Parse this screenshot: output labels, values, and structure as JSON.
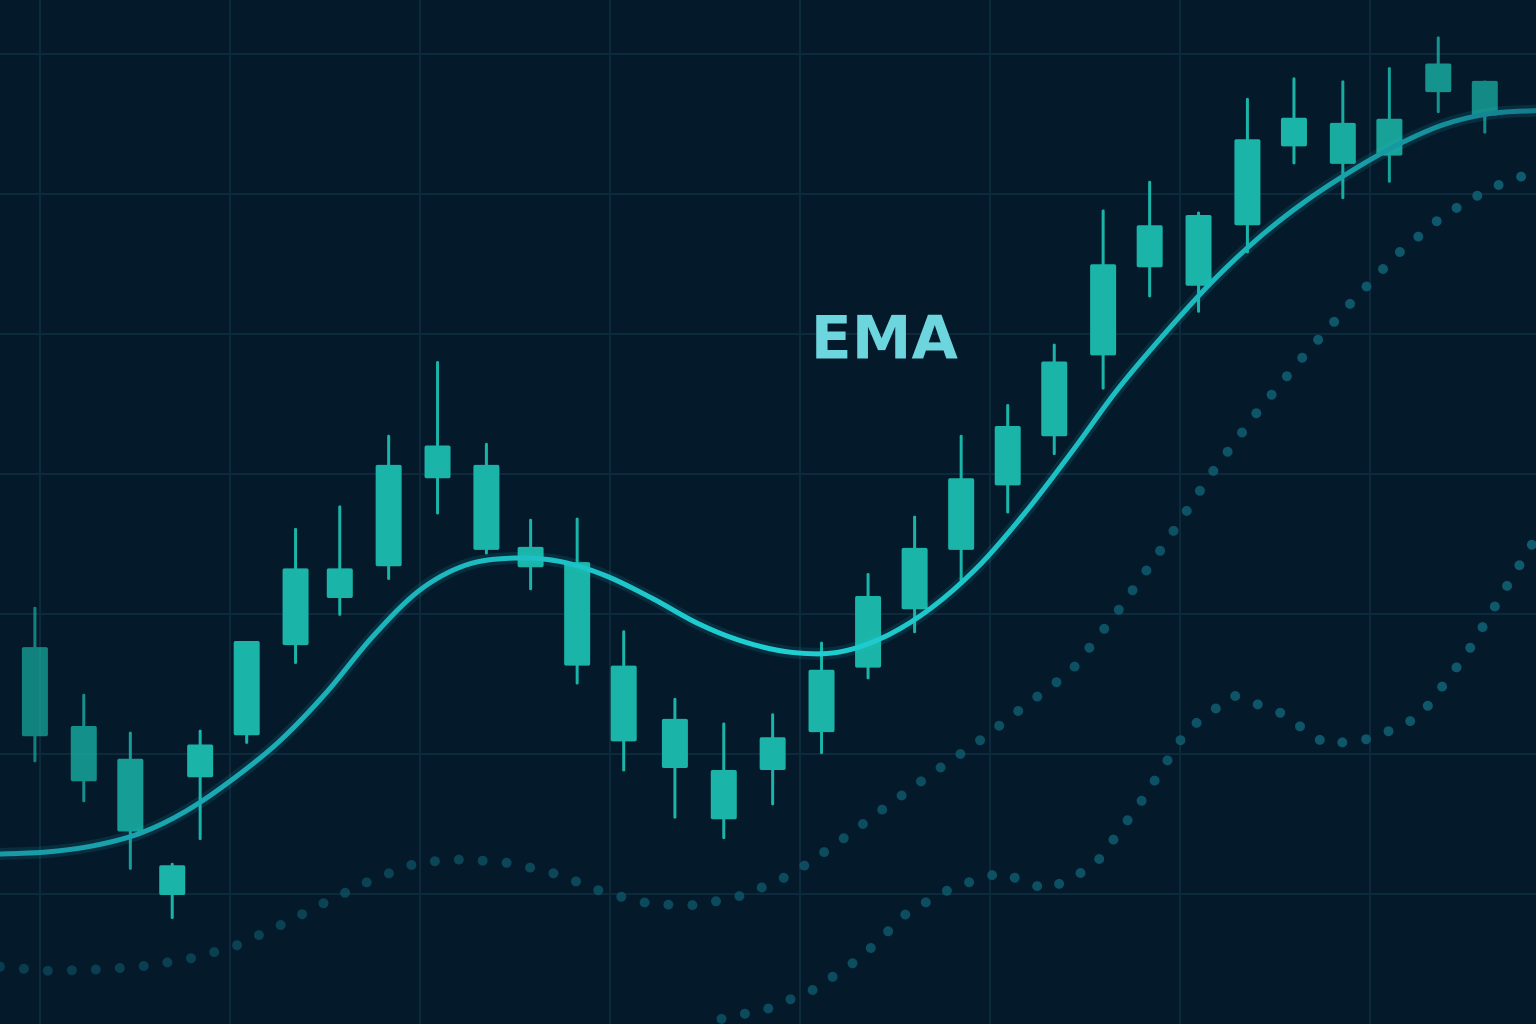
{
  "chart_data": {
    "type": "candlestick",
    "title": "",
    "xlabel": "",
    "ylabel": "",
    "xlim": [
      0,
      33
    ],
    "ylim": [
      0,
      100
    ],
    "grid": true,
    "annotations": [
      {
        "text": "EMA",
        "x": 19.0,
        "y": 65
      }
    ],
    "candles": [
      {
        "x": 0.75,
        "open": 28.1,
        "high": 40.6,
        "low": 25.7,
        "close": 36.8
      },
      {
        "x": 1.8,
        "open": 23.7,
        "high": 32.1,
        "low": 21.8,
        "close": 29.1
      },
      {
        "x": 2.8,
        "open": 18.8,
        "high": 28.4,
        "low": 15.2,
        "close": 25.9
      },
      {
        "x": 3.7,
        "open": 12.6,
        "high": 15.6,
        "low": 10.4,
        "close": 15.5
      },
      {
        "x": 4.3,
        "open": 24.1,
        "high": 28.6,
        "low": 18.1,
        "close": 27.3
      },
      {
        "x": 5.3,
        "open": 28.2,
        "high": 37.1,
        "low": 27.5,
        "close": 37.4
      },
      {
        "x": 6.35,
        "open": 37.0,
        "high": 48.3,
        "low": 35.3,
        "close": 44.5
      },
      {
        "x": 7.3,
        "open": 41.6,
        "high": 50.5,
        "low": 40.0,
        "close": 44.5
      },
      {
        "x": 8.35,
        "open": 44.7,
        "high": 57.4,
        "low": 43.5,
        "close": 54.6
      },
      {
        "x": 9.4,
        "open": 53.3,
        "high": 64.6,
        "low": 49.9,
        "close": 56.5
      },
      {
        "x": 10.45,
        "open": 46.3,
        "high": 56.6,
        "low": 46.0,
        "close": 54.6
      },
      {
        "x": 11.4,
        "open": 44.6,
        "high": 49.2,
        "low": 42.5,
        "close": 46.6
      },
      {
        "x": 12.4,
        "open": 45.1,
        "high": 49.3,
        "low": 33.3,
        "close": 35.0
      },
      {
        "x": 13.4,
        "open": 27.6,
        "high": 38.3,
        "low": 24.8,
        "close": 35.0
      },
      {
        "x": 14.5,
        "open": 25.0,
        "high": 31.7,
        "low": 20.2,
        "close": 29.8
      },
      {
        "x": 15.55,
        "open": 20.0,
        "high": 29.3,
        "low": 18.2,
        "close": 24.8
      },
      {
        "x": 16.6,
        "open": 24.8,
        "high": 30.2,
        "low": 21.5,
        "close": 28.0
      },
      {
        "x": 17.65,
        "open": 28.5,
        "high": 37.2,
        "low": 26.5,
        "close": 34.6
      },
      {
        "x": 18.65,
        "open": 34.8,
        "high": 43.9,
        "low": 33.8,
        "close": 41.8
      },
      {
        "x": 19.65,
        "open": 40.5,
        "high": 49.5,
        "low": 38.3,
        "close": 46.5
      },
      {
        "x": 20.65,
        "open": 46.3,
        "high": 57.4,
        "low": 43.3,
        "close": 53.3
      },
      {
        "x": 21.65,
        "open": 52.6,
        "high": 60.4,
        "low": 50.0,
        "close": 58.4
      },
      {
        "x": 22.65,
        "open": 57.4,
        "high": 66.3,
        "low": 55.7,
        "close": 64.7
      },
      {
        "x": 23.7,
        "open": 65.3,
        "high": 79.4,
        "low": 62.1,
        "close": 74.2
      },
      {
        "x": 24.7,
        "open": 73.9,
        "high": 82.2,
        "low": 71.1,
        "close": 78.0
      },
      {
        "x": 25.75,
        "open": 72.1,
        "high": 79.2,
        "low": 69.6,
        "close": 79.0
      },
      {
        "x": 26.8,
        "open": 78.0,
        "high": 90.3,
        "low": 75.4,
        "close": 86.4
      },
      {
        "x": 27.8,
        "open": 85.7,
        "high": 92.3,
        "low": 84.1,
        "close": 88.5
      },
      {
        "x": 28.85,
        "open": 84.0,
        "high": 92.0,
        "low": 80.7,
        "close": 88.0
      },
      {
        "x": 29.85,
        "open": 84.8,
        "high": 93.3,
        "low": 82.3,
        "close": 88.4
      },
      {
        "x": 30.9,
        "open": 91.0,
        "high": 96.3,
        "low": 89.1,
        "close": 93.8
      },
      {
        "x": 31.9,
        "open": 88.7,
        "high": 92.0,
        "low": 87.1,
        "close": 92.1
      }
    ],
    "series": [
      {
        "style": "solid",
        "x": [
          0,
          1,
          2,
          3,
          4,
          5,
          6,
          7,
          8,
          9,
          10,
          11,
          12,
          13,
          14,
          15,
          16,
          17,
          18,
          19,
          20,
          21,
          22,
          23,
          24,
          25,
          26,
          27,
          28,
          29,
          30,
          31,
          32,
          33
        ],
        "values": [
          16.6,
          16.8,
          17.4,
          18.6,
          20.8,
          23.9,
          27.6,
          32.3,
          37.8,
          42.3,
          44.8,
          45.5,
          45.2,
          43.8,
          41.6,
          39.1,
          37.3,
          36.3,
          36.3,
          37.8,
          40.6,
          44.6,
          49.8,
          55.7,
          61.9,
          67.3,
          72.3,
          76.6,
          80.2,
          83.2,
          85.8,
          87.8,
          88.9,
          89.2
        ]
      },
      {
        "style": "dotted",
        "x": [
          0,
          1,
          2,
          3,
          4,
          5,
          6,
          7,
          8,
          9,
          10,
          11,
          12,
          13,
          14,
          15,
          16,
          17,
          18,
          19,
          20,
          21,
          22,
          23,
          24,
          25,
          26,
          27,
          28,
          29,
          30,
          31,
          32,
          33
        ],
        "values": [
          5.6,
          5.2,
          5.3,
          5.6,
          6.3,
          7.5,
          9.6,
          11.9,
          14.1,
          15.8,
          16.1,
          15.7,
          14.6,
          12.8,
          11.7,
          11.6,
          12.6,
          14.6,
          17.7,
          21.1,
          24.4,
          27.5,
          31.0,
          34.4,
          40.2,
          46.7,
          53.6,
          59.7,
          65.2,
          70.3,
          75.1,
          78.9,
          81.6,
          83.3
        ]
      },
      {
        "style": "dotted",
        "x": [
          15.5,
          16.5,
          17.5,
          18.5,
          19.5,
          20.5,
          21.5,
          22.5,
          23.5,
          24.5,
          25.5,
          26.5,
          27.5,
          28.5,
          29.5,
          30.5,
          31.5,
          33
        ],
        "values": [
          0.5,
          1.5,
          3.4,
          6.5,
          10.9,
          13.4,
          14.8,
          13.1,
          15.4,
          21.6,
          28.7,
          32.1,
          30.4,
          27.3,
          27.9,
          30.0,
          36.1,
          47.5
        ]
      }
    ]
  },
  "colors": {
    "background": "#041a2b",
    "grid": "#0d2a3c",
    "candle": "#1ab5a8",
    "ema_line": "#1ec9cd",
    "dots": "#0f5a6c",
    "label": "#6dd5dd"
  }
}
